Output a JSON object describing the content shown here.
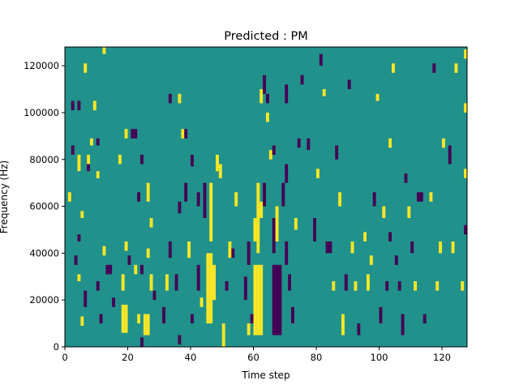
{
  "chart_data": {
    "type": "heatmap",
    "title": "Predicted : PM",
    "xlabel": "Time step",
    "ylabel": "Frequency (Hz)",
    "xlim": [
      0,
      128
    ],
    "ylim": [
      0,
      128000
    ],
    "xticks": [
      0,
      20,
      40,
      60,
      80,
      100,
      120
    ],
    "yticks": [
      0,
      20000,
      40000,
      60000,
      80000,
      100000,
      120000
    ],
    "ytick_labels": [
      "0",
      "20000",
      "40000",
      "60000",
      "80000",
      "100000",
      "120000"
    ],
    "background_value": 0,
    "colors": {
      "-1": "#440154",
      "0": "#21918c",
      "1": "#fde725"
    },
    "segments_note": "[time_step, freq_start_kHz, freq_end_kHz, value]",
    "segments": [
      [
        12,
        125,
        128,
        1
      ],
      [
        6,
        117,
        121,
        1
      ],
      [
        9,
        101,
        105,
        1
      ],
      [
        2,
        101,
        105,
        -1
      ],
      [
        4,
        101,
        105,
        -1
      ],
      [
        8,
        86,
        89,
        1
      ],
      [
        10,
        86,
        89,
        -1
      ],
      [
        19,
        89,
        93,
        1
      ],
      [
        21,
        89,
        93,
        -1
      ],
      [
        22,
        89,
        93,
        -1
      ],
      [
        2,
        82,
        86,
        -1
      ],
      [
        4,
        75,
        82,
        1
      ],
      [
        7,
        75,
        82,
        -1
      ],
      [
        7,
        78,
        82,
        1
      ],
      [
        10,
        72,
        75,
        1
      ],
      [
        17,
        78,
        82,
        1
      ],
      [
        24,
        78,
        82,
        -1
      ],
      [
        1,
        62,
        66,
        1
      ],
      [
        5,
        55,
        58,
        1
      ],
      [
        4,
        45,
        48,
        -1
      ],
      [
        3,
        35,
        39,
        -1
      ],
      [
        4,
        28,
        31,
        1
      ],
      [
        6,
        17,
        24,
        -1
      ],
      [
        5,
        9,
        13,
        1
      ],
      [
        10,
        24,
        28,
        -1
      ],
      [
        11,
        10,
        14,
        -1
      ],
      [
        13,
        31,
        35,
        -1
      ],
      [
        14,
        31,
        35,
        -1
      ],
      [
        12,
        39,
        43,
        1
      ],
      [
        15,
        17,
        21,
        -1
      ],
      [
        18,
        6,
        18,
        1
      ],
      [
        19,
        6,
        18,
        1
      ],
      [
        18,
        24,
        31,
        1
      ],
      [
        19,
        41,
        45,
        1
      ],
      [
        20,
        35,
        39,
        -1
      ],
      [
        22,
        31,
        35,
        1
      ],
      [
        23,
        10,
        14,
        1
      ],
      [
        24,
        0,
        4,
        -1
      ],
      [
        25,
        5,
        14,
        1
      ],
      [
        26,
        5,
        14,
        1
      ],
      [
        23,
        62,
        66,
        -1
      ],
      [
        24,
        31,
        35,
        -1
      ],
      [
        26,
        38,
        42,
        1
      ],
      [
        27,
        24,
        31,
        1
      ],
      [
        27,
        51,
        55,
        1
      ],
      [
        26,
        62,
        70,
        1
      ],
      [
        28,
        20,
        24,
        -1
      ],
      [
        31,
        10,
        17,
        -1
      ],
      [
        32,
        24,
        31,
        1
      ],
      [
        33,
        38,
        45,
        -1
      ],
      [
        35,
        24,
        31,
        -1
      ],
      [
        36,
        1,
        5,
        -1
      ],
      [
        36,
        57,
        62,
        -1
      ],
      [
        33,
        104,
        108,
        -1
      ],
      [
        36,
        104,
        108,
        1
      ],
      [
        37,
        89,
        93,
        1
      ],
      [
        38,
        89,
        93,
        -1
      ],
      [
        38,
        62,
        70,
        -1
      ],
      [
        39,
        38,
        45,
        1
      ],
      [
        40,
        10,
        14,
        -1
      ],
      [
        40,
        77,
        82,
        -1
      ],
      [
        42,
        24,
        35,
        -1
      ],
      [
        42,
        60,
        66,
        -1
      ],
      [
        43,
        17,
        21,
        1
      ],
      [
        44,
        55,
        70,
        -1
      ],
      [
        45,
        10,
        40,
        1
      ],
      [
        46,
        10,
        40,
        1
      ],
      [
        47,
        20,
        35,
        1
      ],
      [
        46,
        45,
        70,
        1
      ],
      [
        48,
        75,
        82,
        1
      ],
      [
        49,
        72,
        78,
        1
      ],
      [
        50,
        0,
        10,
        1
      ],
      [
        51,
        24,
        28,
        -1
      ],
      [
        52,
        38,
        45,
        1
      ],
      [
        53,
        38,
        42,
        -1
      ],
      [
        54,
        60,
        66,
        1
      ],
      [
        57,
        20,
        30,
        -1
      ],
      [
        58,
        35,
        45,
        -1
      ],
      [
        58,
        5,
        10,
        1
      ],
      [
        59,
        10,
        14,
        -1
      ],
      [
        60,
        45,
        55,
        1
      ],
      [
        60,
        5,
        35,
        1
      ],
      [
        61,
        5,
        35,
        1
      ],
      [
        62,
        5,
        35,
        1
      ],
      [
        61,
        40,
        70,
        1
      ],
      [
        62,
        55,
        62,
        1
      ],
      [
        63,
        60,
        70,
        -1
      ],
      [
        62,
        104,
        110,
        1
      ],
      [
        64,
        96,
        100,
        1
      ],
      [
        63,
        108,
        116,
        -1
      ],
      [
        64,
        104,
        108,
        -1
      ],
      [
        65,
        80,
        84,
        1
      ],
      [
        66,
        82,
        86,
        -1
      ],
      [
        66,
        5,
        35,
        -1
      ],
      [
        67,
        5,
        35,
        -1
      ],
      [
        68,
        5,
        35,
        -1
      ],
      [
        66,
        40,
        55,
        -1
      ],
      [
        67,
        45,
        60,
        1
      ],
      [
        69,
        60,
        70,
        -1
      ],
      [
        70,
        70,
        78,
        -1
      ],
      [
        70,
        104,
        112,
        -1
      ],
      [
        70,
        35,
        45,
        -1
      ],
      [
        71,
        24,
        31,
        -1
      ],
      [
        72,
        10,
        17,
        -1
      ],
      [
        73,
        50,
        55,
        1
      ],
      [
        74,
        85,
        89,
        -1
      ],
      [
        75,
        112,
        116,
        -1
      ],
      [
        77,
        84,
        89,
        -1
      ],
      [
        79,
        45,
        55,
        -1
      ],
      [
        80,
        72,
        76,
        1
      ],
      [
        81,
        120,
        125,
        -1
      ],
      [
        82,
        107,
        110,
        1
      ],
      [
        83,
        40,
        45,
        -1
      ],
      [
        84,
        40,
        45,
        -1
      ],
      [
        85,
        24,
        28,
        1
      ],
      [
        86,
        80,
        86,
        -1
      ],
      [
        87,
        60,
        66,
        1
      ],
      [
        88,
        5,
        14,
        1
      ],
      [
        89,
        24,
        31,
        -1
      ],
      [
        90,
        110,
        114,
        -1
      ],
      [
        91,
        40,
        45,
        1
      ],
      [
        92,
        24,
        28,
        1
      ],
      [
        93,
        5,
        10,
        -1
      ],
      [
        95,
        45,
        49,
        1
      ],
      [
        96,
        24,
        31,
        1
      ],
      [
        97,
        35,
        39,
        1
      ],
      [
        98,
        60,
        66,
        -1
      ],
      [
        99,
        105,
        108,
        1
      ],
      [
        100,
        10,
        17,
        -1
      ],
      [
        101,
        55,
        60,
        1
      ],
      [
        102,
        24,
        28,
        -1
      ],
      [
        103,
        45,
        49,
        -1
      ],
      [
        103,
        85,
        89,
        1
      ],
      [
        104,
        117,
        121,
        1
      ],
      [
        105,
        35,
        39,
        -1
      ],
      [
        106,
        24,
        28,
        -1
      ],
      [
        107,
        5,
        14,
        -1
      ],
      [
        108,
        70,
        74,
        -1
      ],
      [
        109,
        55,
        60,
        1
      ],
      [
        110,
        40,
        45,
        -1
      ],
      [
        111,
        24,
        28,
        1
      ],
      [
        112,
        62,
        66,
        -1
      ],
      [
        113,
        62,
        66,
        -1
      ],
      [
        114,
        10,
        14,
        -1
      ],
      [
        116,
        62,
        66,
        1
      ],
      [
        117,
        117,
        121,
        -1
      ],
      [
        118,
        24,
        28,
        1
      ],
      [
        119,
        40,
        45,
        1
      ],
      [
        120,
        85,
        89,
        1
      ],
      [
        122,
        78,
        86,
        -1
      ],
      [
        123,
        40,
        45,
        1
      ],
      [
        124,
        117,
        121,
        1
      ],
      [
        126,
        24,
        28,
        1
      ],
      [
        127,
        100,
        104,
        1
      ],
      [
        128,
        72,
        76,
        1
      ],
      [
        128,
        123,
        127,
        1
      ],
      [
        128,
        48,
        52,
        -1
      ]
    ]
  }
}
